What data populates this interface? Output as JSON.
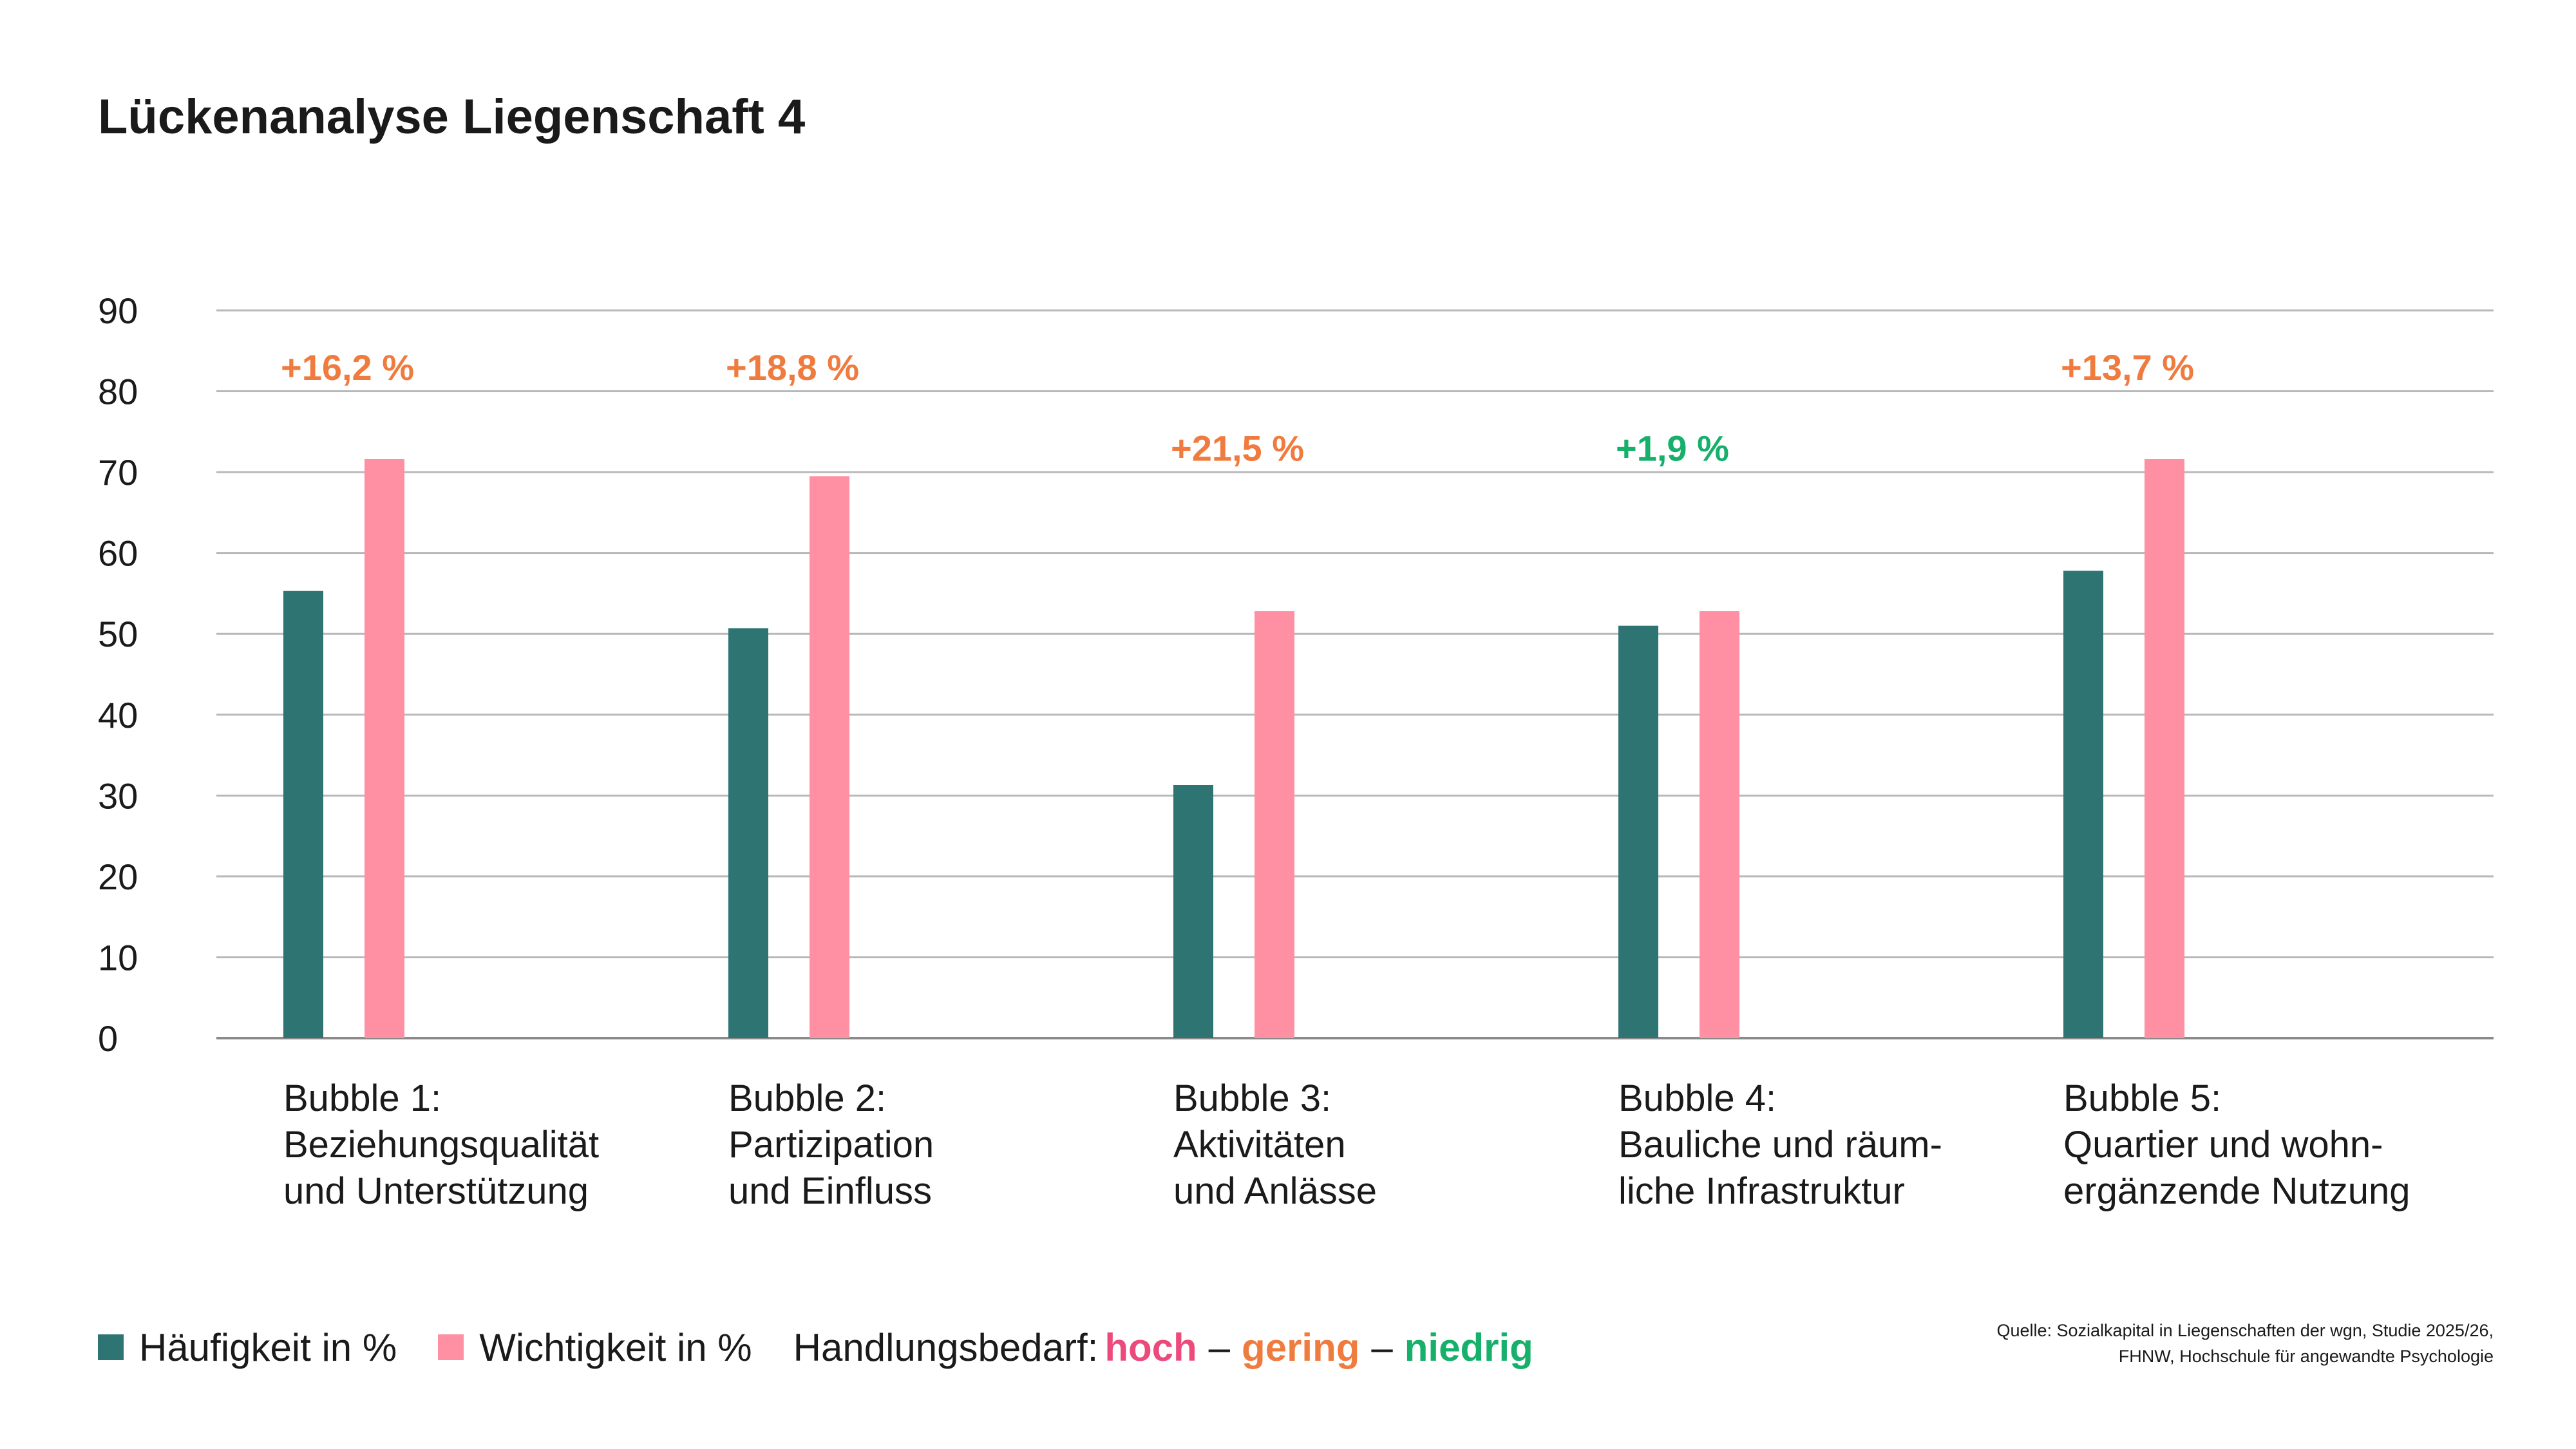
{
  "title": "Lückenanalyse Liegenschaft 4",
  "chart_data": {
    "type": "bar",
    "ylim": [
      0,
      90
    ],
    "yticks": [
      0,
      10,
      20,
      30,
      40,
      50,
      60,
      70,
      80,
      90
    ],
    "grid": true,
    "categories": [
      [
        "Bubble 1:",
        "Beziehungsqualität",
        "und Unterstützung"
      ],
      [
        "Bubble 2:",
        "Partizipation",
        "und Einfluss"
      ],
      [
        "Bubble 3:",
        "Aktivitäten",
        "und Anlässe"
      ],
      [
        "Bubble 4:",
        "Bauliche und räum-",
        "liche Infrastruktur"
      ],
      [
        "Bubble 5:",
        "Quartier und wohn-",
        "ergänzende Nutzung"
      ]
    ],
    "series": [
      {
        "name": "Häufigkeit in %",
        "color": "#2e7473",
        "values": [
          55.3,
          50.7,
          31.3,
          51.0,
          57.8
        ]
      },
      {
        "name": "Wichtigkeit in %",
        "color": "#ff8fa3",
        "values": [
          71.6,
          69.5,
          52.8,
          52.8,
          71.6
        ]
      }
    ],
    "annotations": [
      {
        "text": "+16,2 %",
        "level": "gering",
        "y": 83
      },
      {
        "text": "+18,8 %",
        "level": "gering",
        "y": 83
      },
      {
        "text": "+21,5 %",
        "level": "gering",
        "y": 73
      },
      {
        "text": "+1,9 %",
        "level": "niedrig",
        "y": 73
      },
      {
        "text": "+13,7 %",
        "level": "gering",
        "y": 83
      }
    ]
  },
  "legend": {
    "need_label": "Handlungsbedarf:",
    "levels": [
      {
        "key": "hoch",
        "label": "hoch",
        "color": "#ec4a7a"
      },
      {
        "key": "gering",
        "label": "gering",
        "color": "#f07b3e"
      },
      {
        "key": "niedrig",
        "label": "niedrig",
        "color": "#16b06b"
      }
    ],
    "separator": "–"
  },
  "source": {
    "line1": "Quelle: Sozialkapital in Liegenschaften der wgn, Studie 2025/26,",
    "line2": "FHNW, Hochschule für angewandte Psychologie"
  }
}
